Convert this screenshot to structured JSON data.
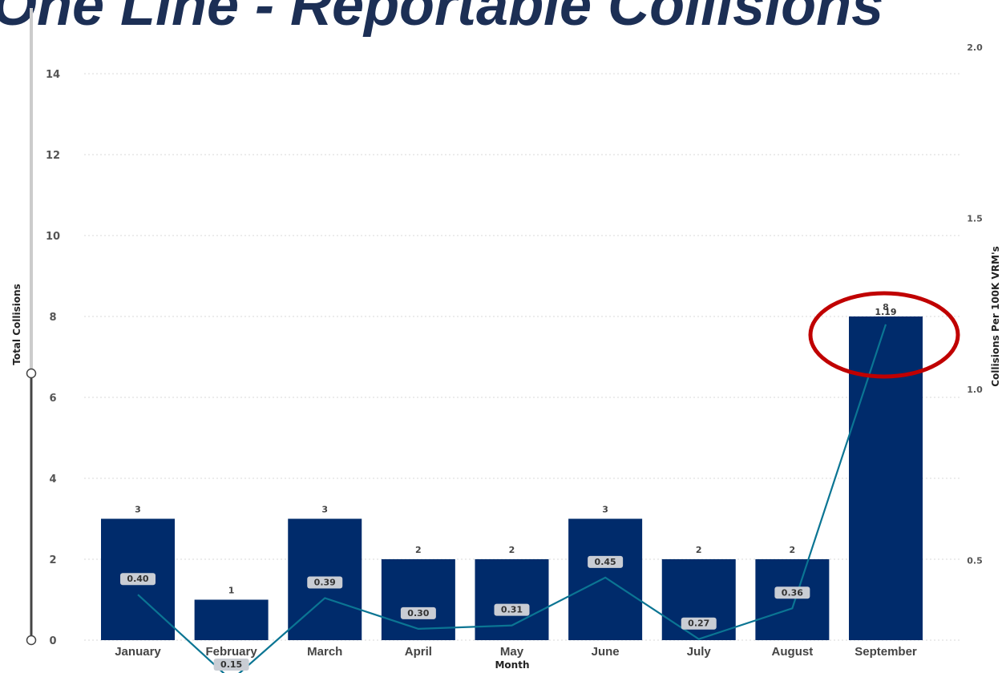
{
  "title": "One Line - Reportable Collisions",
  "colors": {
    "bar": "#002b6b",
    "line": "#0b7593",
    "highlight": "#c00000",
    "label_box": "#c9cdd4",
    "grid": "#d9d9d9",
    "slider_track": "#cccccc",
    "slider_active": "#444444"
  },
  "icons": {
    "slider_handle": "circle-handle-icon"
  },
  "chart_data": {
    "type": "bar",
    "categories": [
      "January",
      "February",
      "March",
      "April",
      "May",
      "June",
      "July",
      "August",
      "September"
    ],
    "series": [
      {
        "name": "",
        "type": "bar",
        "axis": "left",
        "values": [
          3,
          1,
          3,
          2,
          2,
          3,
          2,
          2,
          8
        ]
      },
      {
        "name": "",
        "type": "line",
        "axis": "right",
        "values": [
          0.4,
          0.15,
          0.39,
          0.3,
          0.31,
          0.45,
          0.27,
          0.36,
          1.19
        ]
      }
    ],
    "xlabel": "Month",
    "ylabel": "Total Collisions",
    "y2label": "Collisions Per 100K VRM's",
    "ylim": [
      0,
      14
    ],
    "yticks": [
      "0",
      "2",
      "4",
      "6",
      "8",
      "10",
      "12",
      "14"
    ],
    "y2ticks": [
      "0.5",
      "1.0",
      "1.5",
      "2.0"
    ],
    "grid": true,
    "legend": "none",
    "annotations": [
      "red ellipse highlighting September"
    ]
  }
}
